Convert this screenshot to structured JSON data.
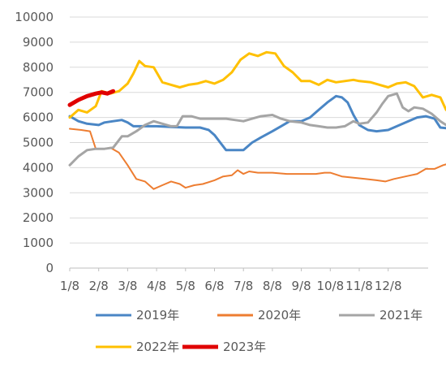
{
  "chart_data": {
    "type": "line",
    "title": "",
    "xlabel": "",
    "ylabel": "",
    "x_ticks": [
      "1/8",
      "2/8",
      "3/8",
      "4/8",
      "5/8",
      "6/8",
      "7/8",
      "8/8",
      "9/8",
      "10/8",
      "11/8",
      "12/8"
    ],
    "ylim": [
      0,
      10000
    ],
    "y_ticks": [
      "0",
      "1000",
      "2000",
      "3000",
      "4000",
      "5000",
      "6000",
      "7000",
      "8000",
      "9000",
      "10000"
    ],
    "grid": "horizontal",
    "legend_position": "bottom",
    "series": [
      {
        "name": "2019年",
        "color": "#4A86C5",
        "width": 3,
        "points": [
          [
            0,
            6050
          ],
          [
            0.3,
            5850
          ],
          [
            0.6,
            5750
          ],
          [
            1,
            5700
          ],
          [
            1.2,
            5800
          ],
          [
            1.5,
            5850
          ],
          [
            1.8,
            5900
          ],
          [
            2,
            5800
          ],
          [
            2.2,
            5650
          ],
          [
            2.6,
            5650
          ],
          [
            3,
            5650
          ],
          [
            3.5,
            5620
          ],
          [
            4,
            5600
          ],
          [
            4.5,
            5600
          ],
          [
            4.8,
            5500
          ],
          [
            5,
            5300
          ],
          [
            5.2,
            5000
          ],
          [
            5.4,
            4700
          ],
          [
            5.7,
            4700
          ],
          [
            6,
            4700
          ],
          [
            6.3,
            5000
          ],
          [
            6.6,
            5200
          ],
          [
            7,
            5450
          ],
          [
            7.3,
            5650
          ],
          [
            7.6,
            5850
          ],
          [
            8,
            5850
          ],
          [
            8.3,
            6000
          ],
          [
            8.6,
            6300
          ],
          [
            8.9,
            6600
          ],
          [
            9.2,
            6850
          ],
          [
            9.4,
            6800
          ],
          [
            9.6,
            6600
          ],
          [
            9.8,
            6100
          ],
          [
            10,
            5700
          ],
          [
            10.3,
            5500
          ],
          [
            10.6,
            5450
          ],
          [
            11,
            5500
          ],
          [
            11.3,
            5650
          ],
          [
            11.6,
            5800
          ],
          [
            12,
            6000
          ],
          [
            12.3,
            6050
          ],
          [
            12.6,
            5950
          ],
          [
            12.8,
            5600
          ],
          [
            13.2,
            5550
          ],
          [
            13.4,
            5550
          ]
        ]
      },
      {
        "name": "2020年",
        "color": "#ED7D31",
        "width": 2,
        "points": [
          [
            0,
            5550
          ],
          [
            0.4,
            5500
          ],
          [
            0.7,
            5450
          ],
          [
            0.9,
            4750
          ],
          [
            1.2,
            4750
          ],
          [
            1.4,
            4800
          ],
          [
            1.7,
            4600
          ],
          [
            2,
            4100
          ],
          [
            2.3,
            3550
          ],
          [
            2.6,
            3450
          ],
          [
            2.9,
            3150
          ],
          [
            3.2,
            3300
          ],
          [
            3.5,
            3450
          ],
          [
            3.8,
            3350
          ],
          [
            4,
            3200
          ],
          [
            4.3,
            3300
          ],
          [
            4.6,
            3350
          ],
          [
            5,
            3500
          ],
          [
            5.3,
            3650
          ],
          [
            5.6,
            3700
          ],
          [
            5.8,
            3900
          ],
          [
            6,
            3750
          ],
          [
            6.2,
            3850
          ],
          [
            6.5,
            3800
          ],
          [
            7,
            3800
          ],
          [
            7.5,
            3750
          ],
          [
            8,
            3750
          ],
          [
            8.5,
            3750
          ],
          [
            8.8,
            3800
          ],
          [
            9,
            3800
          ],
          [
            9.4,
            3650
          ],
          [
            9.8,
            3600
          ],
          [
            10.2,
            3550
          ],
          [
            10.6,
            3500
          ],
          [
            10.9,
            3450
          ],
          [
            11.2,
            3550
          ],
          [
            11.6,
            3650
          ],
          [
            12,
            3750
          ],
          [
            12.3,
            3950
          ],
          [
            12.6,
            3950
          ],
          [
            12.9,
            4100
          ],
          [
            13.2,
            4200
          ],
          [
            13.4,
            4500
          ]
        ]
      },
      {
        "name": "2021年",
        "color": "#A5A5A5",
        "width": 3,
        "points": [
          [
            0,
            4100
          ],
          [
            0.3,
            4450
          ],
          [
            0.6,
            4700
          ],
          [
            0.9,
            4750
          ],
          [
            1.2,
            4750
          ],
          [
            1.5,
            4800
          ],
          [
            1.8,
            5250
          ],
          [
            2,
            5250
          ],
          [
            2.3,
            5450
          ],
          [
            2.6,
            5700
          ],
          [
            2.9,
            5850
          ],
          [
            3.2,
            5750
          ],
          [
            3.5,
            5650
          ],
          [
            3.7,
            5650
          ],
          [
            3.9,
            6050
          ],
          [
            4.2,
            6050
          ],
          [
            4.5,
            5950
          ],
          [
            5,
            5950
          ],
          [
            5.4,
            5950
          ],
          [
            5.7,
            5900
          ],
          [
            6,
            5850
          ],
          [
            6.3,
            5950
          ],
          [
            6.6,
            6050
          ],
          [
            7,
            6100
          ],
          [
            7.3,
            5950
          ],
          [
            7.6,
            5850
          ],
          [
            8,
            5800
          ],
          [
            8.3,
            5700
          ],
          [
            8.6,
            5650
          ],
          [
            8.9,
            5600
          ],
          [
            9.2,
            5600
          ],
          [
            9.5,
            5650
          ],
          [
            9.8,
            5850
          ],
          [
            10,
            5750
          ],
          [
            10.3,
            5800
          ],
          [
            10.6,
            6200
          ],
          [
            10.8,
            6550
          ],
          [
            11,
            6850
          ],
          [
            11.3,
            6950
          ],
          [
            11.5,
            6400
          ],
          [
            11.7,
            6250
          ],
          [
            11.9,
            6400
          ],
          [
            12.2,
            6350
          ],
          [
            12.5,
            6150
          ],
          [
            12.8,
            5850
          ],
          [
            13,
            5700
          ],
          [
            13.2,
            5600
          ],
          [
            13.4,
            5650
          ]
        ]
      },
      {
        "name": "2022年",
        "color": "#FFC000",
        "width": 3,
        "points": [
          [
            0,
            6000
          ],
          [
            0.3,
            6300
          ],
          [
            0.6,
            6200
          ],
          [
            0.9,
            6450
          ],
          [
            1.1,
            7050
          ],
          [
            1.4,
            6950
          ],
          [
            1.7,
            7050
          ],
          [
            2,
            7350
          ],
          [
            2.2,
            7750
          ],
          [
            2.4,
            8250
          ],
          [
            2.6,
            8050
          ],
          [
            2.9,
            8000
          ],
          [
            3.2,
            7400
          ],
          [
            3.5,
            7300
          ],
          [
            3.8,
            7200
          ],
          [
            4.1,
            7300
          ],
          [
            4.4,
            7350
          ],
          [
            4.7,
            7450
          ],
          [
            5,
            7350
          ],
          [
            5.3,
            7500
          ],
          [
            5.6,
            7800
          ],
          [
            5.9,
            8300
          ],
          [
            6.2,
            8550
          ],
          [
            6.5,
            8450
          ],
          [
            6.8,
            8600
          ],
          [
            7.1,
            8550
          ],
          [
            7.4,
            8050
          ],
          [
            7.7,
            7800
          ],
          [
            8,
            7450
          ],
          [
            8.3,
            7450
          ],
          [
            8.6,
            7300
          ],
          [
            8.9,
            7500
          ],
          [
            9.2,
            7400
          ],
          [
            9.5,
            7450
          ],
          [
            9.8,
            7500
          ],
          [
            10,
            7450
          ],
          [
            10.4,
            7400
          ],
          [
            10.7,
            7300
          ],
          [
            11,
            7200
          ],
          [
            11.3,
            7350
          ],
          [
            11.6,
            7400
          ],
          [
            11.9,
            7250
          ],
          [
            12.2,
            6800
          ],
          [
            12.5,
            6900
          ],
          [
            12.8,
            6800
          ],
          [
            13,
            6300
          ],
          [
            13.2,
            6650
          ],
          [
            13.4,
            6750
          ]
        ]
      },
      {
        "name": "2023年",
        "color": "#E00000",
        "width": 5,
        "points": [
          [
            0,
            6500
          ],
          [
            0.3,
            6700
          ],
          [
            0.6,
            6850
          ],
          [
            0.9,
            6950
          ],
          [
            1.1,
            7000
          ],
          [
            1.3,
            6950
          ],
          [
            1.5,
            7050
          ]
        ]
      }
    ]
  }
}
